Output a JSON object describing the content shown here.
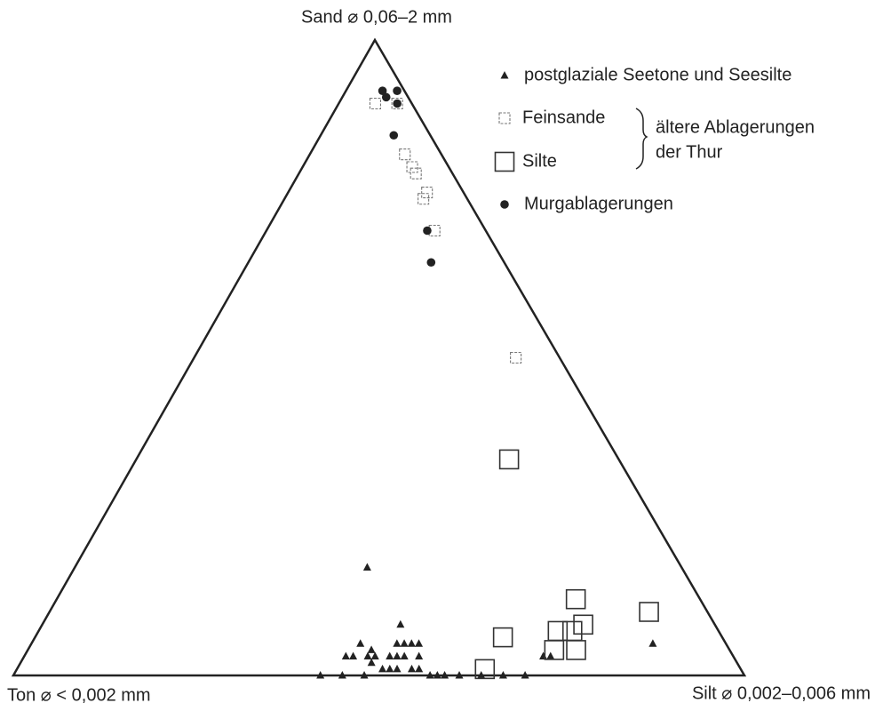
{
  "chart_data": {
    "type": "ternary",
    "top_label": "Sand ⌀ 0,06–2 mm",
    "left_label": "Ton ⌀ < 0,002 mm",
    "right_label": "Silt ⌀ 0,002–0,006 mm",
    "group_label": [
      "ältere Ablagerungen",
      "der Thur"
    ],
    "series": [
      {
        "name": "postglaziale Seetone und Seesilte",
        "marker": "triangle",
        "color": "#222222",
        "sand": [
          17,
          8,
          5,
          3,
          5,
          5,
          5,
          5,
          5,
          4,
          3,
          3,
          3,
          3,
          3,
          3,
          3,
          3,
          3,
          2,
          1,
          1,
          1,
          1,
          1,
          0,
          0,
          0,
          0,
          0,
          0,
          0,
          0,
          0,
          0
        ],
        "silt": [
          40,
          49,
          85,
          72,
          45,
          50,
          51,
          52,
          53,
          47,
          44,
          45,
          47,
          48,
          50,
          51,
          52,
          54,
          71,
          48,
          50,
          51,
          52,
          54,
          55,
          57,
          58,
          59,
          42,
          45,
          48,
          61,
          64,
          67,
          70
        ],
        "clay": [
          43,
          43,
          10,
          25,
          50,
          45,
          44,
          43,
          42,
          49,
          53,
          52,
          50,
          49,
          47,
          46,
          45,
          43,
          26,
          50,
          49,
          48,
          47,
          45,
          44,
          43,
          42,
          41,
          58,
          55,
          52,
          39,
          36,
          33,
          30
        ]
      },
      {
        "name": "Feinsande",
        "marker": "small-square",
        "color": "#777777",
        "sand": [
          90,
          90,
          82,
          80,
          79,
          76,
          75,
          70,
          50
        ],
        "silt": [
          5,
          8,
          13,
          15,
          16,
          19,
          19,
          23,
          44
        ],
        "clay": [
          5,
          2,
          5,
          5,
          5,
          5,
          6,
          7,
          6
        ]
      },
      {
        "name": "Silte",
        "marker": "square",
        "color": "#333333",
        "sand": [
          34,
          12,
          10,
          8,
          7,
          7,
          6,
          4,
          4,
          1
        ],
        "silt": [
          51,
          71,
          82,
          74,
          73,
          71,
          64,
          72,
          75,
          64
        ],
        "clay": [
          15,
          17,
          8,
          18,
          20,
          22,
          30,
          24,
          21,
          35
        ]
      },
      {
        "name": "Murgablagerungen",
        "marker": "circle",
        "color": "#222222",
        "sand": [
          92,
          91,
          92,
          90,
          85,
          70,
          65
        ],
        "silt": [
          5,
          6,
          7,
          8,
          10,
          22,
          25
        ],
        "clay": [
          3,
          3,
          1,
          2,
          5,
          8,
          10
        ]
      }
    ]
  }
}
